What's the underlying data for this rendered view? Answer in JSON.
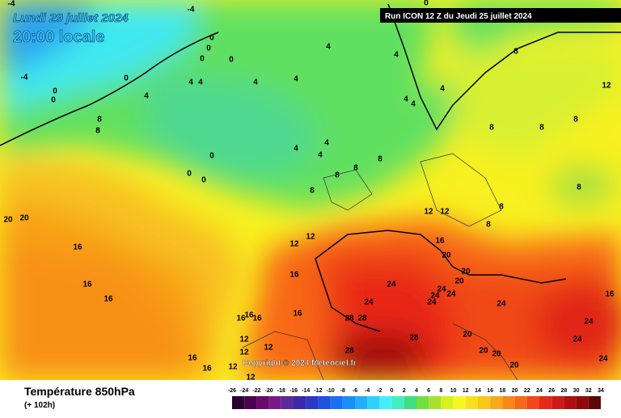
{
  "header": {
    "date": "Lundi 29 juillet 2024",
    "time": "20:00 locale",
    "run": "Run ICON 12 Z du Jeudi 25 juillet 2024"
  },
  "map": {
    "copyright": "Copyright © 2024 Meteociel.fr",
    "labels": [
      -4,
      -4,
      -4,
      0,
      0,
      0,
      0,
      0,
      0,
      0,
      0,
      0,
      0,
      0,
      4,
      4,
      4,
      4,
      4,
      4,
      4,
      4,
      4,
      4,
      4,
      4,
      4,
      8,
      8,
      8,
      8,
      8,
      8,
      8,
      8,
      8,
      8,
      8,
      8,
      8,
      12,
      12,
      12,
      12,
      12,
      12,
      12,
      12,
      12,
      12,
      16,
      16,
      16,
      16,
      16,
      16,
      16,
      16,
      16,
      16,
      16,
      16,
      20,
      20,
      20,
      20,
      20,
      20,
      20,
      20,
      20,
      24,
      24,
      24,
      24,
      24,
      24,
      24,
      24,
      24,
      24,
      28,
      28,
      28,
      28
    ]
  },
  "footer": {
    "title": "Température 850hPa",
    "lead": "(+ 102h)"
  },
  "scale": {
    "ticks": [
      -26,
      -24,
      -22,
      -20,
      -18,
      -16,
      -14,
      -12,
      -10,
      -8,
      -6,
      -4,
      -2,
      0,
      2,
      4,
      6,
      8,
      10,
      12,
      14,
      16,
      18,
      20,
      22,
      24,
      26,
      28,
      30,
      32,
      34
    ],
    "colors": [
      "#2a0030",
      "#4a0050",
      "#6a0a6a",
      "#7a1a8a",
      "#5a2a9a",
      "#3a2aaa",
      "#2a3ac8",
      "#2050e0",
      "#1a70f0",
      "#1890f8",
      "#20b0ff",
      "#30d0ff",
      "#40f0ff",
      "#40f0c0",
      "#40e080",
      "#70e040",
      "#a8e030",
      "#d8f020",
      "#f8f820",
      "#f8e020",
      "#f8c818",
      "#f8a818",
      "#f88818",
      "#f86818",
      "#f04818",
      "#e82818",
      "#d01818",
      "#b01010",
      "#900808",
      "#600404"
    ]
  }
}
